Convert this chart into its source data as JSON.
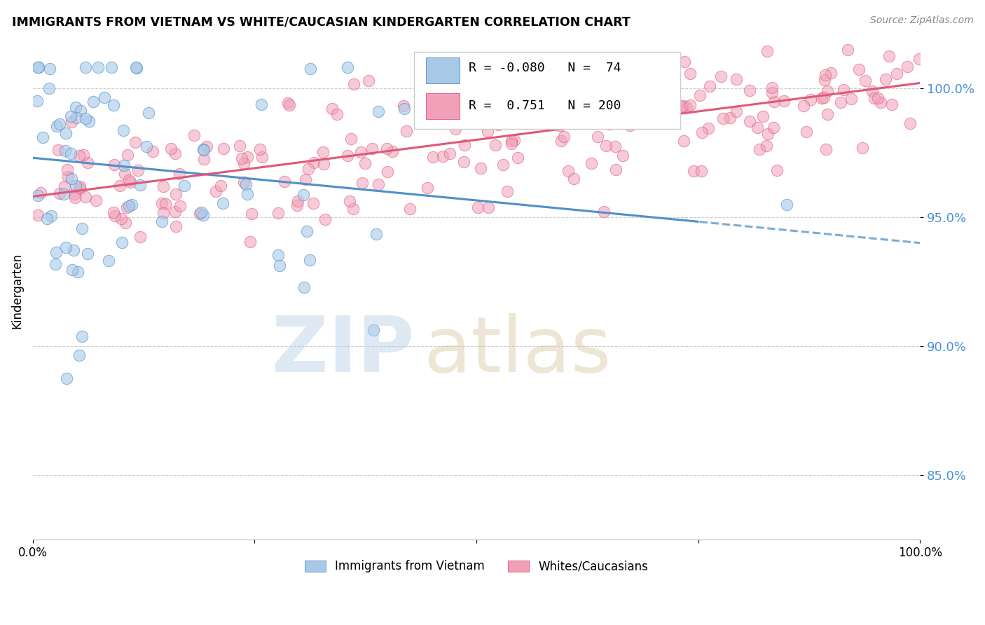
{
  "title": "IMMIGRANTS FROM VIETNAM VS WHITE/CAUCASIAN KINDERGARTEN CORRELATION CHART",
  "source": "Source: ZipAtlas.com",
  "ylabel": "Kindergarten",
  "blue_label": "Immigrants from Vietnam",
  "pink_label": "Whites/Caucasians",
  "blue_R": -0.08,
  "blue_N": 74,
  "pink_R": 0.751,
  "pink_N": 200,
  "blue_color": "#a8c8e8",
  "pink_color": "#f0a0b8",
  "blue_edge_color": "#5090c8",
  "pink_edge_color": "#e05878",
  "blue_line_color": "#5090c8",
  "pink_line_color": "#e05878",
  "xlim": [
    0.0,
    100.0
  ],
  "ylim": [
    82.5,
    101.8
  ],
  "ytick_positions": [
    85.0,
    90.0,
    95.0,
    100.0
  ],
  "ytick_labels": [
    "85.0%",
    "90.0%",
    "95.0%",
    "100.0%"
  ],
  "blue_line_start_y": 97.3,
  "blue_line_end_y": 94.0,
  "blue_solid_end_x": 75.0,
  "pink_line_start_y": 95.8,
  "pink_line_end_y": 100.2
}
